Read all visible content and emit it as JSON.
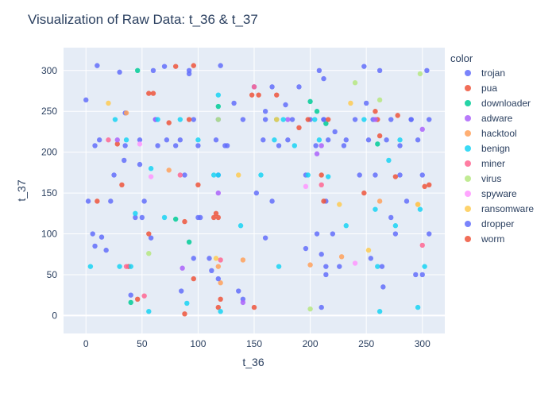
{
  "chart_data": {
    "type": "scatter",
    "title": "Visualization of Raw Data: t_36 & t_37",
    "xlabel": "t_36",
    "ylabel": "t_37",
    "xlim": [
      -20,
      320
    ],
    "ylim": [
      -22,
      328
    ],
    "x_ticks": [
      0,
      50,
      100,
      150,
      200,
      250,
      300
    ],
    "y_ticks": [
      0,
      50,
      100,
      150,
      200,
      250,
      300
    ],
    "grid": true,
    "legend_title": "color",
    "legend_position": "right",
    "series": [
      {
        "name": "trojan",
        "color": "#636efa",
        "x": [
          0,
          8,
          12,
          25,
          35,
          35,
          48,
          52,
          60,
          62,
          80,
          84,
          88,
          96,
          100,
          116,
          118,
          118,
          124,
          140,
          150,
          158,
          160,
          172,
          180,
          196,
          200,
          205,
          206,
          210,
          212,
          214,
          214,
          216,
          230,
          240,
          252,
          256,
          258,
          262,
          268,
          272,
          280,
          290,
          296,
          300,
          304,
          306,
          10,
          30,
          70,
          92,
          120,
          178,
          248,
          290,
          22,
          44,
          58,
          100,
          160,
          220,
          276,
          18,
          110,
          196,
          226,
          300,
          6,
          40,
          85,
          140,
          210,
          265
        ],
        "y": [
          264,
          208,
          215,
          172,
          248,
          208,
          215,
          140,
          300,
          240,
          208,
          215,
          172,
          240,
          208,
          215,
          240,
          172,
          208,
          240,
          280,
          215,
          240,
          208,
          215,
          172,
          240,
          208,
          100,
          75,
          240,
          60,
          140,
          215,
          208,
          240,
          215,
          240,
          172,
          300,
          215,
          240,
          208,
          240,
          215,
          172,
          300,
          240,
          306,
          298,
          305,
          296,
          306,
          258,
          305,
          240,
          140,
          120,
          95,
          120,
          95,
          100,
          100,
          80,
          70,
          82,
          60,
          50,
          100,
          25,
          30,
          20,
          10,
          35
        ]
      },
      {
        "name": "pua",
        "color": "#ef553b",
        "x": [
          60,
          80,
          92,
          96,
          114,
          118,
          148,
          170,
          198,
          212,
          258,
          278,
          302,
          38,
          96,
          118,
          262,
          28,
          56,
          150,
          210,
          260,
          120,
          88
        ],
        "y": [
          272,
          305,
          240,
          306,
          120,
          120,
          270,
          270,
          240,
          140,
          250,
          245,
          158,
          60,
          45,
          10,
          220,
          210,
          100,
          10,
          172,
          240,
          20,
          2
        ]
      },
      {
        "name": "downloader",
        "color": "#00cc96",
        "x": [
          46,
          92,
          118,
          170,
          206,
          214,
          260,
          80,
          40,
          200
        ],
        "y": [
          300,
          90,
          256,
          240,
          250,
          235,
          210,
          118,
          16,
          262
        ]
      },
      {
        "name": "adware",
        "color": "#ab63fa",
        "x": [
          28,
          62,
          118,
          180,
          210,
          258,
          300,
          86,
          206,
          140
        ],
        "y": [
          215,
          240,
          150,
          240,
          208,
          240,
          228,
          58,
          198,
          16
        ]
      },
      {
        "name": "hacktool",
        "color": "#ffa15a",
        "x": [
          118,
          140,
          200,
          228,
          262,
          296,
          120,
          36,
          74
        ],
        "y": [
          60,
          68,
          62,
          72,
          140,
          136,
          40,
          248,
          178
        ]
      },
      {
        "name": "benign",
        "color": "#19d3f3",
        "x": [
          4,
          26,
          36,
          40,
          56,
          84,
          100,
          114,
          118,
          118,
          120,
          138,
          156,
          168,
          172,
          176,
          186,
          198,
          204,
          208,
          216,
          232,
          248,
          258,
          260,
          262,
          276,
          280,
          296,
          298,
          302,
          90,
          58,
          44,
          64,
          30,
          70,
          270
        ],
        "y": [
          60,
          240,
          215,
          60,
          5,
          240,
          215,
          172,
          270,
          172,
          5,
          110,
          172,
          215,
          60,
          240,
          208,
          172,
          240,
          215,
          170,
          110,
          240,
          130,
          60,
          5,
          110,
          215,
          10,
          130,
          60,
          15,
          180,
          125,
          240,
          60,
          120,
          190
        ]
      },
      {
        "name": "miner",
        "color": "#ff6692",
        "x": [
          20,
          52,
          84,
          120,
          150,
          210,
          300,
          36
        ],
        "y": [
          215,
          24,
          172,
          68,
          280,
          160,
          86,
          60
        ]
      },
      {
        "name": "virus",
        "color": "#b6e880",
        "x": [
          118,
          200,
          240,
          262,
          298,
          56
        ],
        "y": [
          240,
          8,
          285,
          264,
          296,
          76
        ]
      },
      {
        "name": "spyware",
        "color": "#ff97ff",
        "x": [
          48,
          196,
          240,
          58
        ],
        "y": [
          210,
          158,
          64,
          170
        ]
      },
      {
        "name": "ransomware",
        "color": "#fecb52",
        "x": [
          20,
          116,
          136,
          170,
          226,
          236,
          252,
          296
        ],
        "y": [
          260,
          70,
          172,
          240,
          136,
          260,
          80,
          136
        ]
      },
      {
        "name": "dropper",
        "color": "#636efa",
        "x": [
          2,
          14,
          34,
          48,
          64,
          72,
          92,
          102,
          118,
          126,
          132,
          160,
          166,
          184,
          190,
          212,
          214,
          222,
          232,
          244,
          254,
          264,
          272,
          286,
          294,
          306,
          8,
          50,
          96,
          136,
          166,
          212,
          250,
          280,
          112,
          152,
          208
        ],
        "y": [
          140,
          96,
          190,
          185,
          208,
          215,
          300,
          120,
          45,
          208,
          260,
          250,
          140,
          240,
          280,
          240,
          50,
          225,
          215,
          172,
          70,
          60,
          120,
          140,
          50,
          100,
          85,
          120,
          70,
          30,
          280,
          290,
          260,
          172,
          55,
          150,
          300
        ]
      },
      {
        "name": "worm",
        "color": "#ef553b",
        "x": [
          10,
          32,
          56,
          88,
          116,
          154,
          190,
          216,
          248,
          276,
          306,
          46,
          100,
          74
        ],
        "y": [
          140,
          160,
          272,
          115,
          125,
          270,
          230,
          240,
          150,
          170,
          160,
          20,
          160,
          236
        ]
      }
    ]
  }
}
